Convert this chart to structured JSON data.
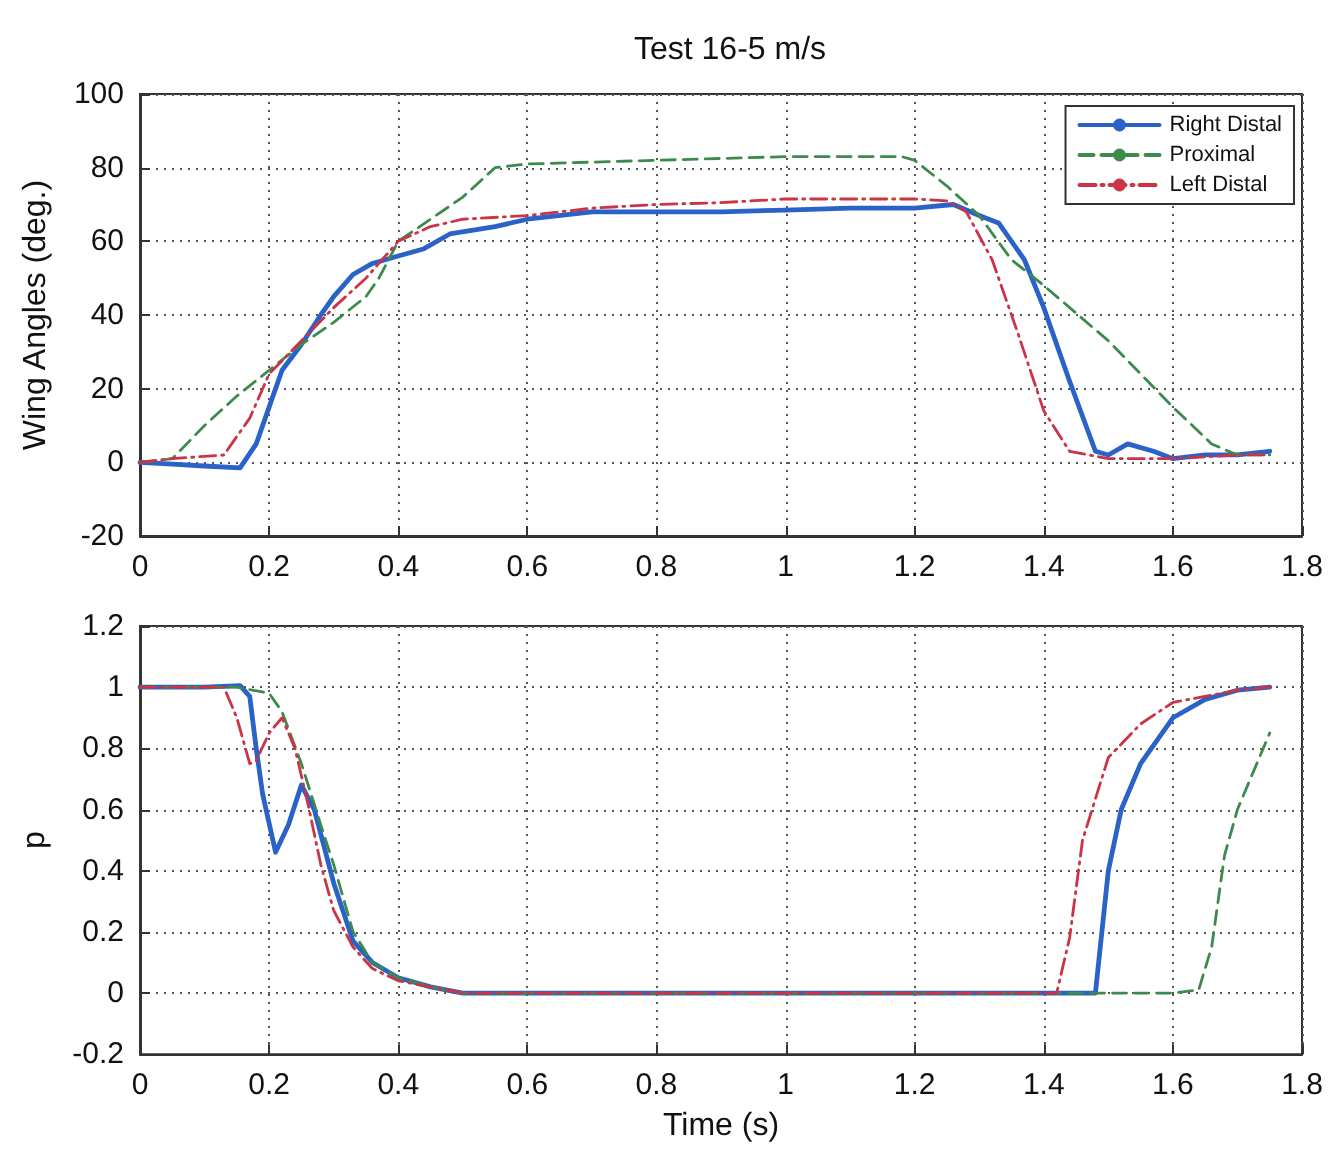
{
  "chart_data": [
    {
      "type": "line",
      "title": "Test 16-5 m/s",
      "ylabel": "Wing Angles (deg.)",
      "xlim": [
        0,
        1.8
      ],
      "xticks": [
        0,
        0.2,
        0.4,
        0.6,
        0.8,
        1,
        1.2,
        1.4,
        1.6,
        1.8
      ],
      "ylim": [
        -20,
        100
      ],
      "yticks": [
        -20,
        0,
        20,
        40,
        60,
        80,
        100
      ],
      "grid": true,
      "legend": "top right",
      "marker": "none",
      "series": [
        {
          "name": "Right Distal",
          "color": "#2a62c8",
          "line_style": "solid",
          "x": [
            0,
            0.05,
            0.1,
            0.155,
            0.18,
            0.2,
            0.22,
            0.25,
            0.28,
            0.3,
            0.33,
            0.36,
            0.4,
            0.44,
            0.48,
            0.55,
            0.6,
            0.7,
            0.8,
            0.9,
            1.0,
            1.1,
            1.2,
            1.26,
            1.3,
            1.33,
            1.37,
            1.4,
            1.44,
            1.48,
            1.5,
            1.53,
            1.57,
            1.6,
            1.65,
            1.7,
            1.75
          ],
          "values": [
            0,
            -0.5,
            -1,
            -1.5,
            5,
            15,
            25,
            32,
            40,
            45,
            51,
            54,
            56,
            58,
            62,
            64,
            66,
            68,
            68,
            68,
            68.5,
            69,
            69,
            70,
            67,
            65,
            55,
            42,
            22,
            3,
            2,
            5,
            3,
            1,
            2,
            2,
            3
          ]
        },
        {
          "name": "Proximal",
          "color": "#3c8a4c",
          "line_style": "dashed",
          "x": [
            0,
            0.05,
            0.1,
            0.15,
            0.2,
            0.25,
            0.3,
            0.35,
            0.37,
            0.4,
            0.45,
            0.5,
            0.55,
            0.6,
            0.8,
            1.0,
            1.18,
            1.2,
            1.25,
            1.3,
            1.35,
            1.4,
            1.5,
            1.6,
            1.66,
            1.7,
            1.75
          ],
          "values": [
            0,
            1,
            10,
            18,
            25,
            32,
            38,
            45,
            50,
            60,
            66,
            72,
            80,
            81,
            82,
            83,
            83,
            82,
            75,
            67,
            55,
            48,
            33,
            15,
            5,
            2,
            2
          ]
        },
        {
          "name": "Left Distal",
          "color": "#cc3344",
          "line_style": "dashdot",
          "x": [
            0,
            0.05,
            0.13,
            0.17,
            0.2,
            0.25,
            0.3,
            0.35,
            0.4,
            0.45,
            0.5,
            0.6,
            0.7,
            0.8,
            0.9,
            1.0,
            1.2,
            1.25,
            1.28,
            1.32,
            1.36,
            1.4,
            1.44,
            1.5,
            1.6,
            1.7,
            1.75
          ],
          "values": [
            0,
            1,
            2,
            12,
            24,
            33,
            42,
            50,
            60,
            64,
            66,
            67,
            69,
            70,
            70.5,
            71.5,
            71.5,
            71,
            68,
            55,
            35,
            14,
            3,
            1,
            1,
            2,
            2
          ]
        }
      ]
    },
    {
      "type": "line",
      "xlabel": "Time (s)",
      "ylabel": "p",
      "xlim": [
        0,
        1.8
      ],
      "xticks": [
        0,
        0.2,
        0.4,
        0.6,
        0.8,
        1,
        1.2,
        1.4,
        1.6,
        1.8
      ],
      "ylim": [
        -0.2,
        1.2
      ],
      "yticks": [
        -0.2,
        0,
        0.2,
        0.4,
        0.6,
        0.8,
        1,
        1.2
      ],
      "grid": true,
      "legend": false,
      "marker": "none",
      "series": [
        {
          "color": "#2a62c8",
          "line_style": "solid",
          "x": [
            0,
            0.1,
            0.155,
            0.17,
            0.18,
            0.19,
            0.21,
            0.23,
            0.25,
            0.27,
            0.3,
            0.33,
            0.36,
            0.4,
            0.45,
            0.5,
            1.0,
            1.48,
            1.5,
            1.52,
            1.55,
            1.6,
            1.65,
            1.7,
            1.75
          ],
          "values": [
            1,
            1,
            1.005,
            0.97,
            0.8,
            0.65,
            0.46,
            0.55,
            0.68,
            0.6,
            0.36,
            0.17,
            0.1,
            0.05,
            0.02,
            0,
            0,
            0,
            0.4,
            0.6,
            0.75,
            0.9,
            0.96,
            0.99,
            1
          ]
        },
        {
          "color": "#3c8a4c",
          "line_style": "dashed",
          "x": [
            0,
            0.15,
            0.2,
            0.22,
            0.25,
            0.28,
            0.3,
            0.33,
            0.36,
            0.4,
            0.45,
            0.5,
            1.6,
            1.64,
            1.66,
            1.68,
            1.7,
            1.73,
            1.75
          ],
          "values": [
            1,
            1,
            0.98,
            0.92,
            0.75,
            0.55,
            0.42,
            0.2,
            0.1,
            0.05,
            0.02,
            0,
            0,
            0.01,
            0.15,
            0.45,
            0.6,
            0.75,
            0.85
          ]
        },
        {
          "color": "#cc3344",
          "line_style": "dashdot",
          "x": [
            0,
            0.13,
            0.15,
            0.17,
            0.18,
            0.2,
            0.22,
            0.24,
            0.26,
            0.28,
            0.3,
            0.33,
            0.36,
            0.4,
            0.5,
            1.42,
            1.44,
            1.46,
            1.5,
            1.55,
            1.6,
            1.7,
            1.75
          ],
          "values": [
            1,
            1,
            0.9,
            0.75,
            0.76,
            0.85,
            0.9,
            0.8,
            0.62,
            0.42,
            0.27,
            0.15,
            0.08,
            0.04,
            0,
            0,
            0.18,
            0.5,
            0.77,
            0.88,
            0.95,
            0.99,
            1
          ]
        }
      ]
    }
  ]
}
